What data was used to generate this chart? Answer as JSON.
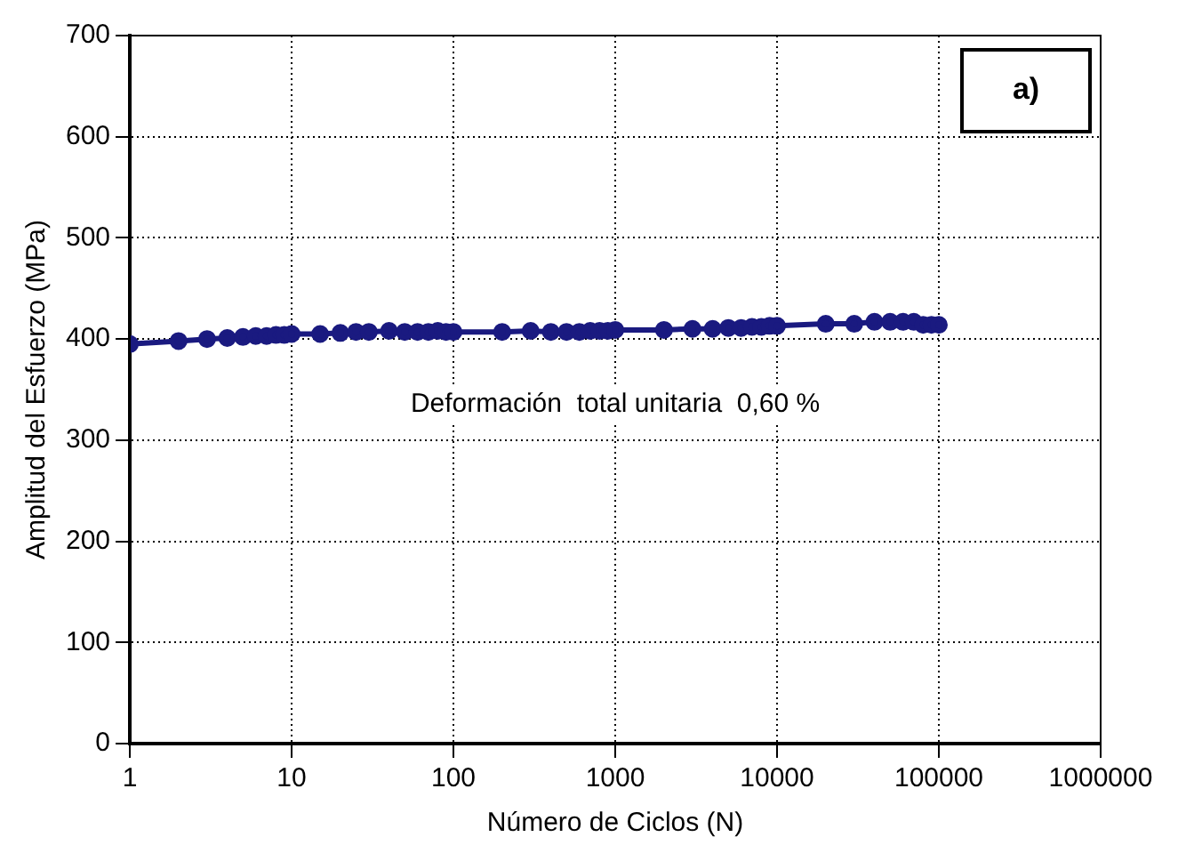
{
  "chart_data": {
    "type": "line",
    "xlabel": "Número de Ciclos (N)",
    "ylabel": "Amplitud del Esfuerzo (MPa)",
    "annotations": [
      "Deformación  total unitaria  0,60 %",
      "a)"
    ],
    "x": [
      1,
      2,
      3,
      4,
      5,
      6,
      7,
      8,
      9,
      10,
      15,
      20,
      25,
      30,
      40,
      50,
      60,
      70,
      80,
      90,
      100,
      200,
      300,
      400,
      500,
      600,
      700,
      800,
      900,
      1000,
      2000,
      3000,
      4000,
      5000,
      6000,
      7000,
      8000,
      9000,
      10000,
      20000,
      30000,
      40000,
      50000,
      60000,
      70000,
      80000,
      90000,
      100000
    ],
    "series": [
      {
        "color": "#1a1a80",
        "values": [
          395,
          398,
          400,
          401,
          402,
          403,
          403,
          404,
          404,
          405,
          405,
          406,
          407,
          407,
          408,
          407,
          407,
          407,
          408,
          407,
          407,
          407,
          408,
          407,
          407,
          407,
          408,
          408,
          408,
          409,
          409,
          410,
          410,
          411,
          411,
          412,
          412,
          413,
          413,
          415,
          415,
          417,
          417,
          417,
          417,
          414,
          414,
          414
        ]
      }
    ],
    "xlim": [
      1,
      1000000
    ],
    "xticks": [
      1,
      10,
      100,
      1000,
      10000,
      100000,
      1000000
    ],
    "ylim": [
      0,
      700
    ],
    "yticks": [
      0,
      100,
      200,
      300,
      400,
      500,
      600,
      700
    ],
    "log": "x",
    "grid": true,
    "legend": false,
    "marker": "circle",
    "line_style": "solid"
  }
}
